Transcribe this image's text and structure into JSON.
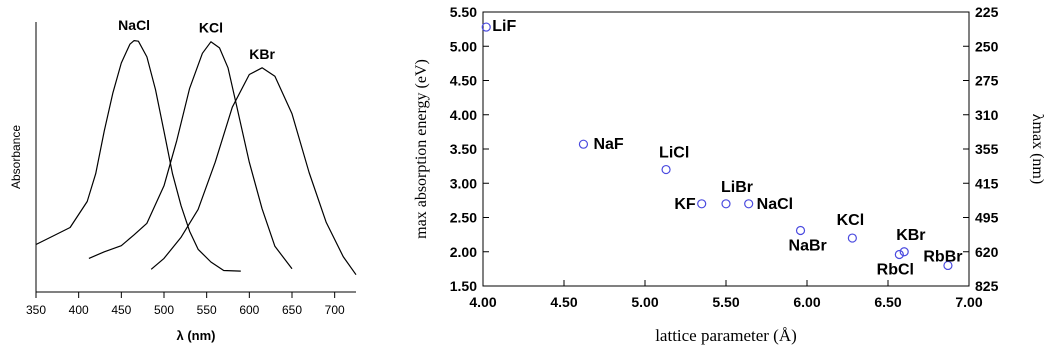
{
  "chart_data": [
    {
      "type": "line",
      "xlabel": "λ (nm)",
      "ylabel": "Absorbance",
      "xlim": [
        350,
        725
      ],
      "x_ticks": [
        350,
        400,
        450,
        500,
        550,
        600,
        650,
        700
      ],
      "series": [
        {
          "name": "NaCl",
          "peak_x": 465,
          "x": [
            350,
            370,
            390,
            410,
            420,
            430,
            440,
            450,
            460,
            465,
            470,
            480,
            490,
            500,
            510,
            520,
            530,
            540,
            555,
            570,
            590
          ],
          "y": [
            0.15,
            0.19,
            0.23,
            0.33,
            0.45,
            0.62,
            0.78,
            0.91,
            0.98,
            1.0,
            0.99,
            0.93,
            0.8,
            0.62,
            0.45,
            0.31,
            0.21,
            0.14,
            0.08,
            0.05,
            0.04
          ]
        },
        {
          "name": "KCl",
          "peak_x": 555,
          "x": [
            412,
            430,
            450,
            465,
            480,
            500,
            515,
            530,
            545,
            555,
            565,
            575,
            585,
            600,
            615,
            630,
            650
          ],
          "y": [
            0.1,
            0.12,
            0.15,
            0.2,
            0.24,
            0.4,
            0.58,
            0.8,
            0.95,
            0.99,
            0.97,
            0.88,
            0.73,
            0.5,
            0.3,
            0.15,
            0.05
          ]
        },
        {
          "name": "KBr",
          "peak_x": 615,
          "x": [
            485,
            500,
            520,
            540,
            560,
            580,
            600,
            615,
            630,
            650,
            670,
            690,
            710,
            725
          ],
          "y": [
            0.05,
            0.1,
            0.18,
            0.3,
            0.5,
            0.72,
            0.86,
            0.88,
            0.85,
            0.7,
            0.45,
            0.25,
            0.1,
            0.03
          ]
        }
      ]
    },
    {
      "type": "scatter",
      "xlabel": "lattice parameter (Å)",
      "ylabel": "max absorption energy (eV)",
      "y2label": "λmax (nm)",
      "xlim": [
        4.0,
        7.0
      ],
      "ylim": [
        1.5,
        5.5
      ],
      "x_ticks": [
        "4.00",
        "4.50",
        "5.00",
        "5.50",
        "6.00",
        "6.50",
        "7.00"
      ],
      "y_ticks": [
        "1.50",
        "2.00",
        "2.50",
        "3.00",
        "3.50",
        "4.00",
        "4.50",
        "5.00",
        "5.50"
      ],
      "y2_ticks": [
        "825",
        "620",
        "495",
        "415",
        "355",
        "310",
        "275",
        "250",
        "225"
      ],
      "points": [
        {
          "label": "LiF",
          "x": 4.02,
          "y": 5.28
        },
        {
          "label": "NaF",
          "x": 4.62,
          "y": 3.57
        },
        {
          "label": "LiCl",
          "x": 5.13,
          "y": 3.2
        },
        {
          "label": "KF",
          "x": 5.35,
          "y": 2.7
        },
        {
          "label": "LiBr",
          "x": 5.5,
          "y": 2.7
        },
        {
          "label": "NaCl",
          "x": 5.64,
          "y": 2.7
        },
        {
          "label": "NaBr",
          "x": 5.96,
          "y": 2.31
        },
        {
          "label": "KCl",
          "x": 6.28,
          "y": 2.2
        },
        {
          "label": "RbCl",
          "x": 6.57,
          "y": 1.96
        },
        {
          "label": "KBr",
          "x": 6.6,
          "y": 2.0
        },
        {
          "label": "RbBr",
          "x": 6.87,
          "y": 1.8
        }
      ]
    }
  ]
}
